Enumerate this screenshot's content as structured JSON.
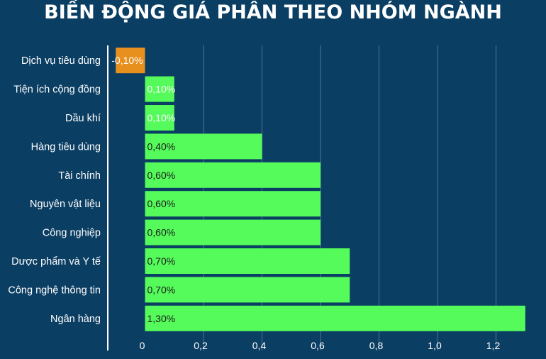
{
  "title": "BIẾN ĐỘNG GIÁ PHÂN THEO NHÓM NGÀNH",
  "colors": {
    "background": "#0b3e63",
    "positive": "#55fb5b",
    "negative": "#e8901e",
    "grid": "#4f7695",
    "axis": "#ffffff"
  },
  "chart_data": {
    "type": "bar",
    "orientation": "horizontal",
    "title": "BIẾN ĐỘNG GIÁ PHÂN THEO NHÓM NGÀNH",
    "categories": [
      "Dịch vụ tiêu dùng",
      "Tiện ích cộng đồng",
      "Dầu khí",
      "Hàng tiêu dùng",
      "Tài chính",
      "Nguyên vật liệu",
      "Công nghiệp",
      "Dược phẩm và Y tế",
      "Công nghệ thông tin",
      "Ngân hàng"
    ],
    "values": [
      -0.1,
      0.1,
      0.1,
      0.4,
      0.6,
      0.6,
      0.6,
      0.7,
      0.7,
      1.3
    ],
    "data_labels": [
      "-0,10%",
      "0,10%",
      "0,10%",
      "0,40%",
      "0,60%",
      "0,60%",
      "0,60%",
      "0,70%",
      "0,70%",
      "1,30%"
    ],
    "xticks": [
      0,
      0.2,
      0.4,
      0.6,
      0.8,
      1.0,
      1.2
    ],
    "xtick_labels": [
      "0",
      "0,2",
      "0,4",
      "0,6",
      "0,8",
      "1,0",
      "1,2"
    ],
    "xlim": [
      -0.1,
      1.3
    ],
    "grid": true,
    "xlabel": "",
    "ylabel": ""
  }
}
